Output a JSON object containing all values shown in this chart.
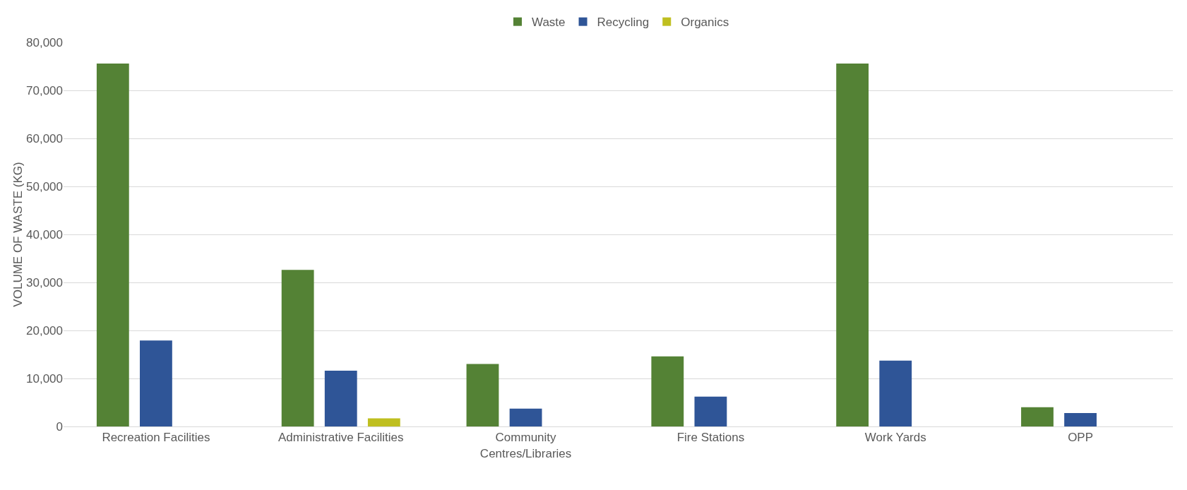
{
  "chart_data": {
    "type": "bar",
    "ylabel": "VOLUME OF WASTE (KG)",
    "categories": [
      "Recreation Facilities",
      "Administrative Facilities",
      "Community Centres/Libraries",
      "Fire Stations",
      "Work Yards",
      "OPP"
    ],
    "series": [
      {
        "name": "Waste",
        "color": "#548235",
        "values": [
          75600,
          32600,
          13000,
          14600,
          75600,
          4000
        ]
      },
      {
        "name": "Recycling",
        "color": "#2f5597",
        "values": [
          17900,
          11600,
          3700,
          6200,
          13700,
          2800
        ]
      },
      {
        "name": "Organics",
        "color": "#bfbf20",
        "values": [
          0,
          1700,
          0,
          0,
          0,
          0
        ]
      }
    ],
    "ylim": [
      0,
      80000
    ],
    "yticks": [
      {
        "value": 0,
        "label": "0"
      },
      {
        "value": 10000,
        "label": "10,000"
      },
      {
        "value": 20000,
        "label": "20,000"
      },
      {
        "value": 30000,
        "label": "30,000"
      },
      {
        "value": 40000,
        "label": "40,000"
      },
      {
        "value": 50000,
        "label": "50,000"
      },
      {
        "value": 60000,
        "label": "60,000"
      },
      {
        "value": 70000,
        "label": "70,000"
      },
      {
        "value": 80000,
        "label": "80,000"
      }
    ],
    "grid": "y",
    "legend": "top"
  }
}
